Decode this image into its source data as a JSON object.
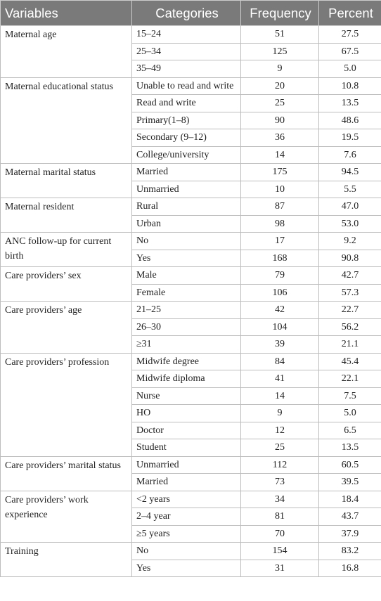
{
  "header": {
    "variables": "Variables",
    "categories": "Categories",
    "frequency": "Frequency",
    "percent": "Percent"
  },
  "groups": [
    {
      "variable": "Maternal age",
      "rows": [
        {
          "category": "15–24",
          "frequency": "51",
          "percent": "27.5"
        },
        {
          "category": "25–34",
          "frequency": "125",
          "percent": "67.5"
        },
        {
          "category": "35–49",
          "frequency": "9",
          "percent": "5.0"
        }
      ]
    },
    {
      "variable": "Maternal educational status",
      "rows": [
        {
          "category": "Unable to read and write",
          "frequency": "20",
          "percent": "10.8"
        },
        {
          "category": "Read and write",
          "frequency": "25",
          "percent": "13.5"
        },
        {
          "category": "Primary(1–8)",
          "frequency": "90",
          "percent": "48.6"
        },
        {
          "category": "Secondary (9–12)",
          "frequency": "36",
          "percent": "19.5"
        },
        {
          "category": "College/university",
          "frequency": "14",
          "percent": "7.6"
        }
      ]
    },
    {
      "variable": "Maternal marital status",
      "rows": [
        {
          "category": "Married",
          "frequency": "175",
          "percent": "94.5"
        },
        {
          "category": "Unmarried",
          "frequency": "10",
          "percent": "5.5"
        }
      ]
    },
    {
      "variable": "Maternal resident",
      "rows": [
        {
          "category": "Rural",
          "frequency": "87",
          "percent": "47.0"
        },
        {
          "category": "Urban",
          "frequency": "98",
          "percent": "53.0"
        }
      ]
    },
    {
      "variable": "ANC follow-up for current birth",
      "rows": [
        {
          "category": "No",
          "frequency": "17",
          "percent": "9.2"
        },
        {
          "category": "Yes",
          "frequency": "168",
          "percent": "90.8"
        }
      ]
    },
    {
      "variable": "Care providers’ sex",
      "rows": [
        {
          "category": "Male",
          "frequency": "79",
          "percent": "42.7"
        },
        {
          "category": "Female",
          "frequency": "106",
          "percent": "57.3"
        }
      ]
    },
    {
      "variable": "Care providers’ age",
      "rows": [
        {
          "category": "21–25",
          "frequency": "42",
          "percent": "22.7"
        },
        {
          "category": "26–30",
          "frequency": "104",
          "percent": "56.2"
        },
        {
          "category": "≥31",
          "frequency": "39",
          "percent": "21.1"
        }
      ]
    },
    {
      "variable": "Care providers’ profession",
      "rows": [
        {
          "category": "Midwife degree",
          "frequency": "84",
          "percent": "45.4"
        },
        {
          "category": "Midwife diploma",
          "frequency": "41",
          "percent": "22.1"
        },
        {
          "category": "Nurse",
          "frequency": "14",
          "percent": "7.5"
        },
        {
          "category": "HO",
          "frequency": "9",
          "percent": "5.0"
        },
        {
          "category": "Doctor",
          "frequency": "12",
          "percent": "6.5"
        },
        {
          "category": "Student",
          "frequency": "25",
          "percent": "13.5"
        }
      ]
    },
    {
      "variable": "Care providers’ marital status",
      "rows": [
        {
          "category": "Unmarried",
          "frequency": "112",
          "percent": "60.5"
        },
        {
          "category": "Married",
          "frequency": "73",
          "percent": "39.5"
        }
      ]
    },
    {
      "variable": "Care providers’ work experience",
      "rows": [
        {
          "category": "<2 years",
          "frequency": "34",
          "percent": "18.4"
        },
        {
          "category": "2–4 year",
          "frequency": "81",
          "percent": "43.7"
        },
        {
          "category": "≥5 years",
          "frequency": "70",
          "percent": "37.9"
        }
      ]
    },
    {
      "variable": "Training",
      "rows": [
        {
          "category": "No",
          "frequency": "154",
          "percent": "83.2"
        },
        {
          "category": "Yes",
          "frequency": "31",
          "percent": "16.8"
        }
      ]
    }
  ]
}
